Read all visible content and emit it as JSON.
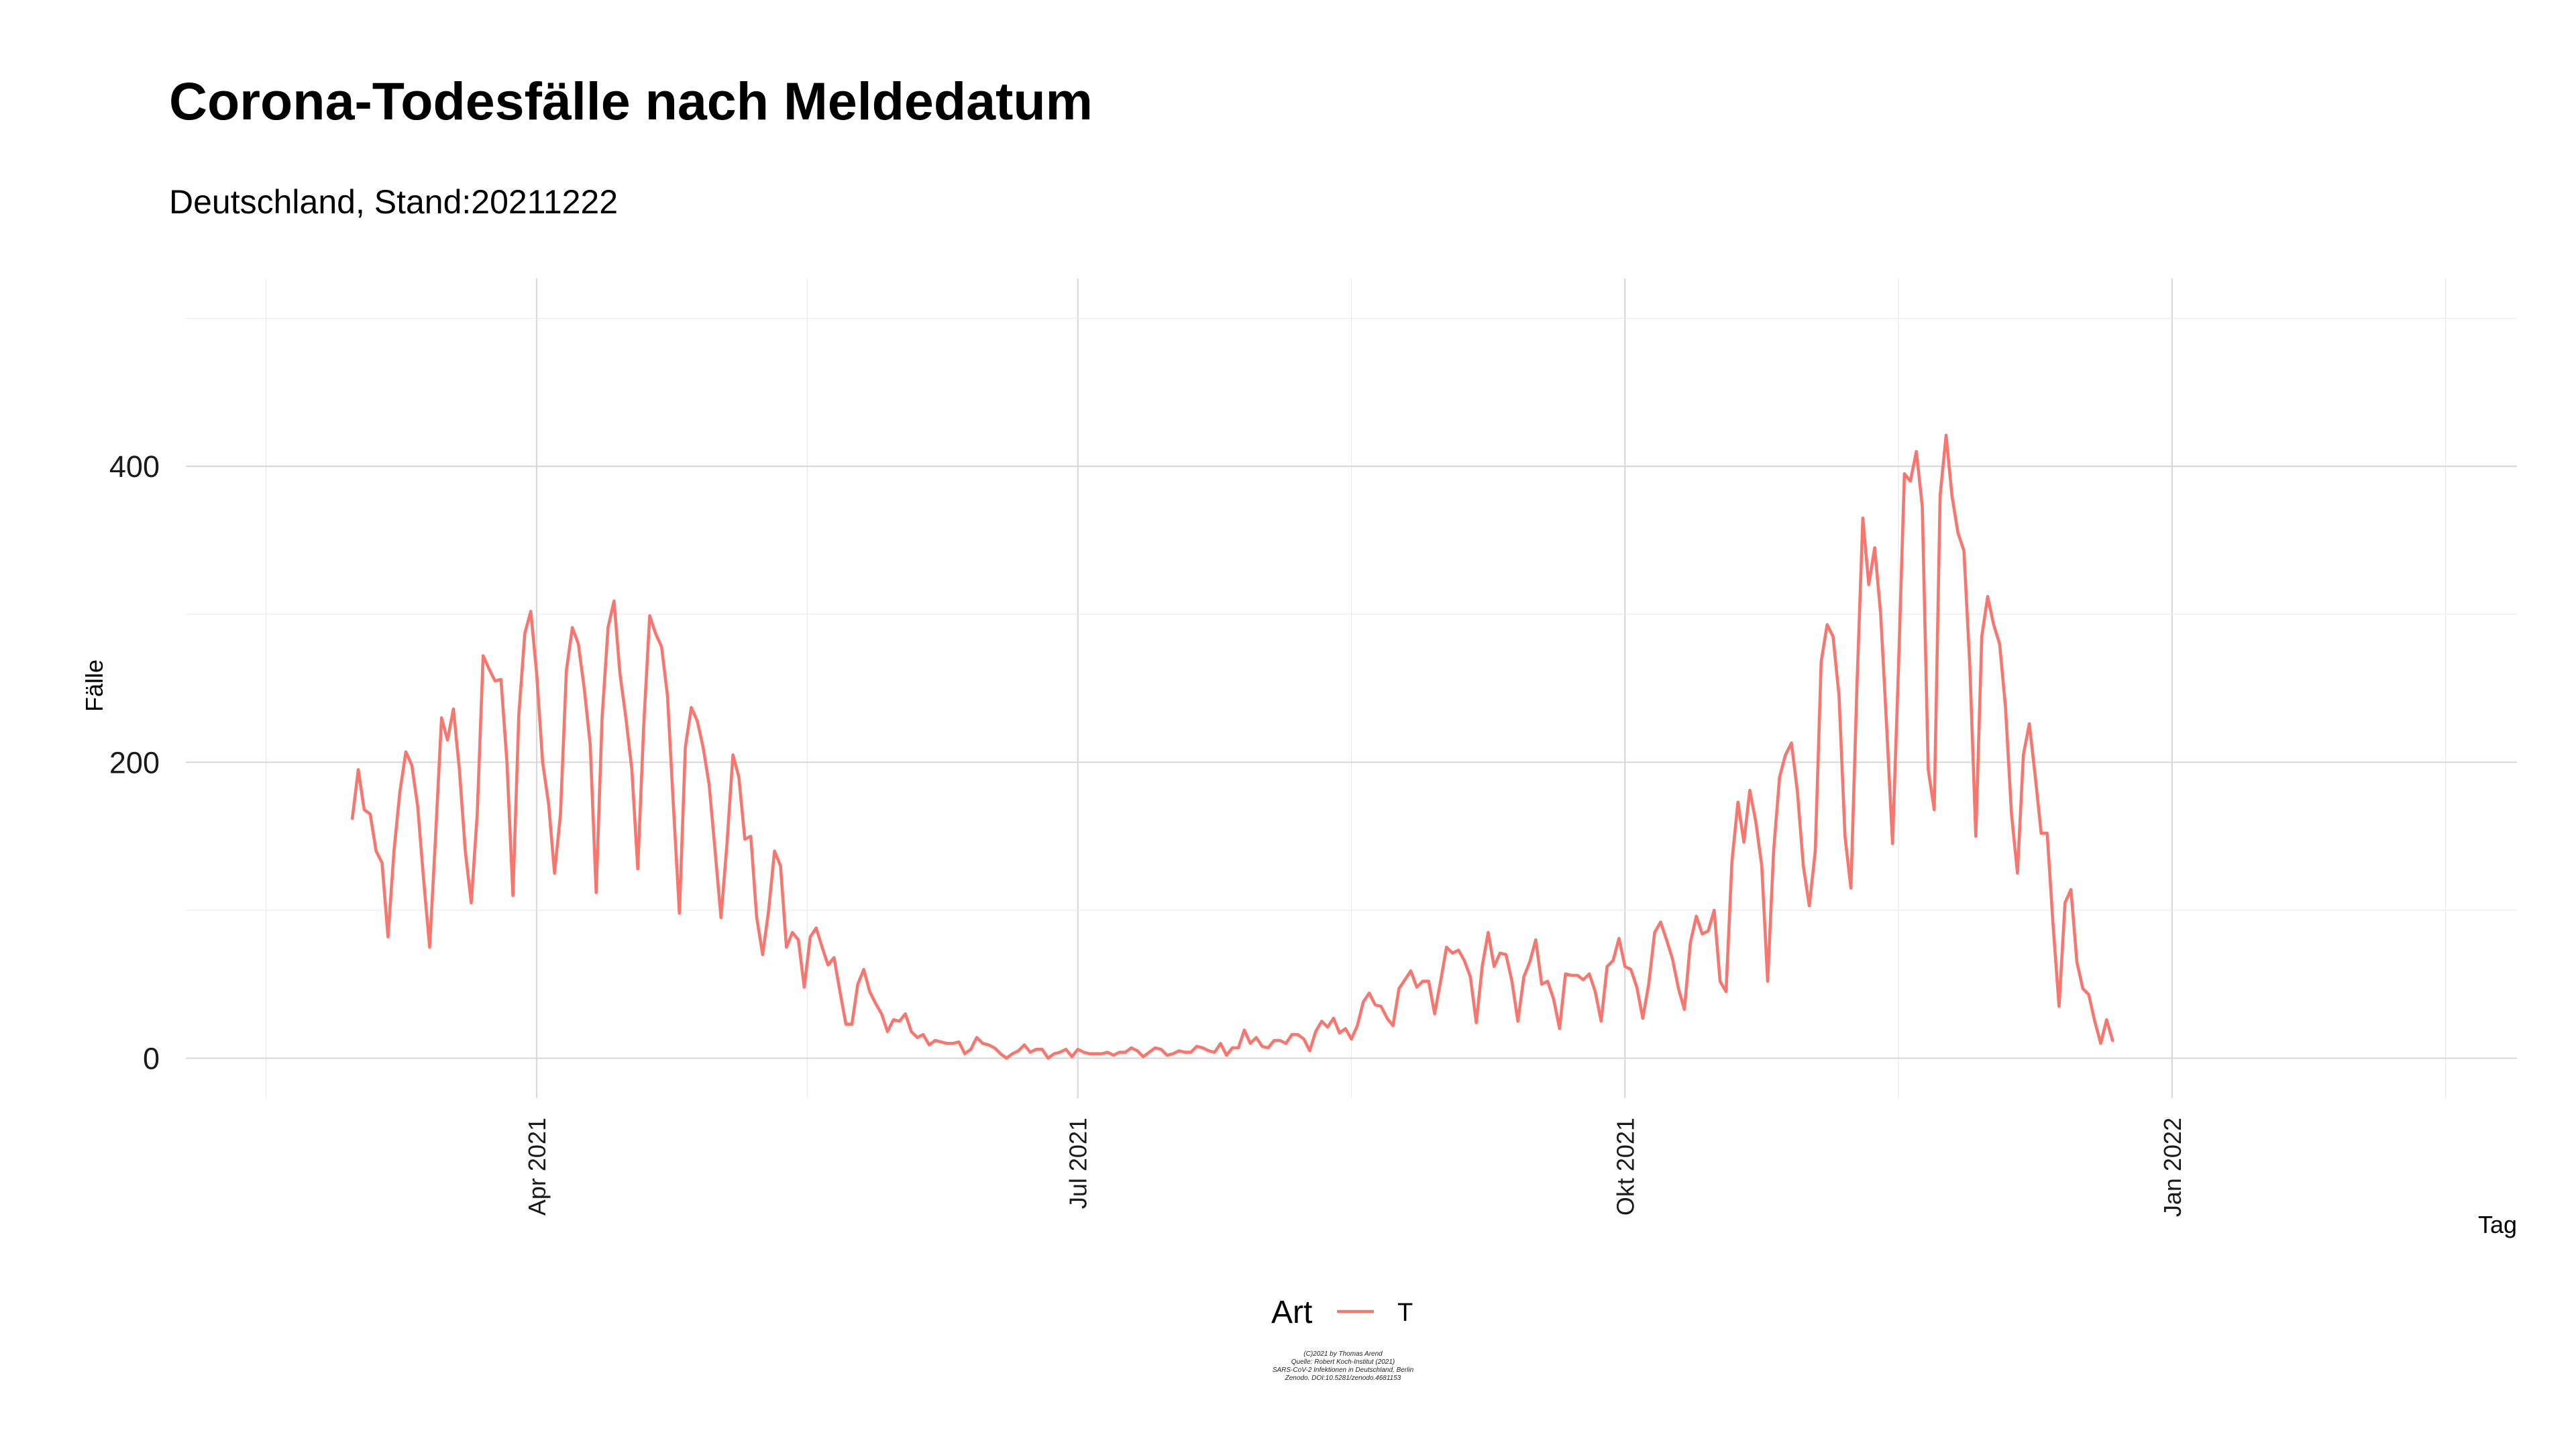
{
  "chart_data": {
    "type": "line",
    "title": "Corona-Todesfälle nach Meldedatum",
    "subtitle": "Deutschland, Stand:20211222",
    "xlabel": "Tag",
    "ylabel": "Fälle",
    "x_start": "2021-03-01",
    "x_range": [
      "2021-02-01",
      "2022-02-28"
    ],
    "ylim": [
      -27,
      527
    ],
    "y_ticks": [
      0,
      200,
      400
    ],
    "y_tick_labels": [
      "0",
      "200",
      "400"
    ],
    "x_ticks": [
      "2021-04-01",
      "2021-07-01",
      "2021-10-01",
      "2022-01-01"
    ],
    "x_tick_labels": [
      "Apr 2021",
      "Jul 2021",
      "Okt 2021",
      "Jan 2022"
    ],
    "grid": true,
    "legend": {
      "title": "Art",
      "position": "bottom",
      "entries": [
        {
          "label": "T",
          "color": "#F8766D"
        }
      ]
    },
    "series": [
      {
        "name": "T",
        "color": "#F8766D",
        "values": [
          162,
          195,
          168,
          165,
          140,
          132,
          82,
          140,
          180,
          207,
          198,
          170,
          120,
          75,
          150,
          230,
          215,
          236,
          195,
          140,
          105,
          165,
          272,
          263,
          255,
          256,
          200,
          110,
          232,
          287,
          302,
          260,
          200,
          172,
          125,
          165,
          262,
          291,
          280,
          250,
          212,
          112,
          230,
          291,
          309,
          260,
          230,
          195,
          128,
          225,
          299,
          287,
          278,
          245,
          170,
          98,
          210,
          237,
          228,
          210,
          185,
          140,
          95,
          145,
          205,
          190,
          148,
          150,
          95,
          70,
          100,
          140,
          130,
          75,
          85,
          80,
          48,
          82,
          88,
          75,
          63,
          68,
          45,
          23,
          23,
          50,
          60,
          45,
          37,
          30,
          18,
          26,
          25,
          30,
          18,
          14,
          16,
          9,
          12,
          11,
          10,
          10,
          11,
          3,
          6,
          14,
          10,
          9,
          7,
          3,
          0,
          3,
          5,
          9,
          4,
          6,
          6,
          0,
          3,
          4,
          6,
          1,
          6,
          4,
          3,
          3,
          3,
          4,
          2,
          4,
          4,
          7,
          5,
          1,
          4,
          7,
          6,
          2,
          3,
          5,
          4,
          4,
          8,
          7,
          5,
          4,
          10,
          2,
          7,
          7,
          19,
          10,
          14,
          8,
          7,
          12,
          12,
          10,
          16,
          16,
          13,
          5,
          18,
          25,
          21,
          27,
          17,
          20,
          13,
          22,
          38,
          44,
          36,
          35,
          27,
          22,
          47,
          53,
          59,
          48,
          52,
          52,
          30,
          52,
          75,
          71,
          73,
          66,
          55,
          24,
          62,
          85,
          62,
          71,
          70,
          52,
          25,
          55,
          65,
          80,
          50,
          52,
          40,
          20,
          57,
          56,
          56,
          53,
          57,
          45,
          25,
          62,
          66,
          81,
          62,
          60,
          48,
          27,
          50,
          85,
          92,
          80,
          67,
          47,
          33,
          78,
          96,
          84,
          86,
          100,
          52,
          45,
          133,
          173,
          146,
          181,
          160,
          130,
          52,
          140,
          190,
          205,
          213,
          180,
          130,
          103,
          140,
          268,
          293,
          285,
          245,
          150,
          115,
          250,
          365,
          320,
          345,
          300,
          225,
          145,
          265,
          395,
          390,
          410,
          373,
          195,
          168,
          380,
          421,
          380,
          355,
          343,
          265,
          150,
          285,
          312,
          293,
          280,
          237,
          165,
          125,
          205,
          226,
          190,
          152,
          152,
          90,
          35,
          105,
          114,
          65,
          47,
          43,
          25,
          10,
          26,
          12
        ]
      }
    ],
    "caption_lines": [
      "(C)2021 by Thomas Arend",
      "Quelle: Robert Koch-Institut (2021)",
      "SARS-CoV-2 Infektionen in Deutschland, Berlin",
      "Zenodo. DOI:10.5281/zenodo.4681153"
    ]
  }
}
